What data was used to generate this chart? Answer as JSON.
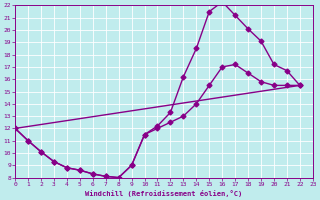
{
  "xlabel": "Windchill (Refroidissement éolien,°C)",
  "xlim": [
    0,
    23
  ],
  "ylim": [
    8,
    22
  ],
  "xticks": [
    0,
    1,
    2,
    3,
    4,
    5,
    6,
    7,
    8,
    9,
    10,
    11,
    12,
    13,
    14,
    15,
    16,
    17,
    18,
    19,
    20,
    21,
    22,
    23
  ],
  "yticks": [
    8,
    9,
    10,
    11,
    12,
    13,
    14,
    15,
    16,
    17,
    18,
    19,
    20,
    21,
    22
  ],
  "bg_color": "#c0eced",
  "line_color": "#880088",
  "curve1_x": [
    0,
    1,
    2,
    3,
    4,
    5,
    6,
    7,
    8,
    9,
    10,
    11,
    12,
    13,
    14,
    15,
    16,
    17,
    18,
    19,
    20,
    21,
    22
  ],
  "curve1_y": [
    12,
    11,
    10.1,
    9.3,
    8.8,
    8.6,
    8.3,
    8.1,
    8.0,
    9.0,
    11.5,
    12.2,
    13.3,
    16.2,
    18.5,
    21.5,
    22.3,
    21.2,
    20.1,
    19.1,
    17.2,
    16.7,
    15.5
  ],
  "curve2_x": [
    0,
    1,
    2,
    3,
    4,
    5,
    6,
    7,
    8,
    9,
    10,
    11,
    12,
    13,
    14,
    15,
    16,
    17,
    18,
    19,
    20,
    21,
    22
  ],
  "curve2_y": [
    12,
    11,
    10.1,
    9.3,
    8.8,
    8.6,
    8.3,
    8.1,
    8.0,
    9.0,
    11.5,
    12.0,
    12.5,
    13.0,
    14.0,
    15.5,
    17.0,
    17.2,
    16.5,
    15.8,
    15.5,
    15.5,
    15.5
  ],
  "line3_x": [
    0,
    22
  ],
  "line3_y": [
    12,
    15.5
  ],
  "marker": "D",
  "markersize": 2.5,
  "linewidth": 1.0
}
